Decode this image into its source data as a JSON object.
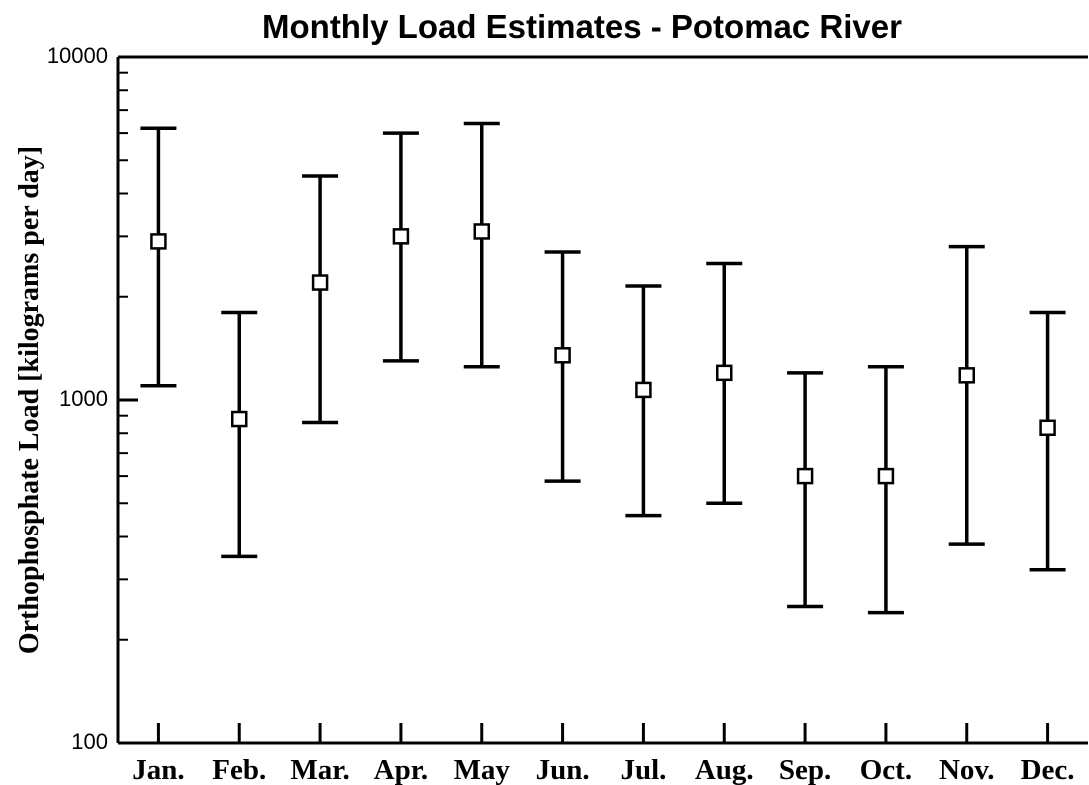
{
  "chart_data": {
    "type": "errorbar",
    "title": "Monthly Load Estimates - Potomac River",
    "y_label": "Orthophosphate  Load [kilograms per day]",
    "categories": [
      "Jan.",
      "Feb.",
      "Mar.",
      "Apr.",
      "May",
      "Jun.",
      "Jul.",
      "Aug.",
      "Sep.",
      "Oct.",
      "Nov.",
      "Dec."
    ],
    "series": [
      {
        "color": "#000000",
        "values": [
          2900,
          880,
          2200,
          3000,
          3100,
          1350,
          1070,
          1200,
          600,
          600,
          1180,
          830
        ],
        "lower": [
          1100,
          350,
          860,
          1300,
          1250,
          580,
          460,
          500,
          250,
          240,
          380,
          320
        ],
        "upper": [
          6200,
          1800,
          4500,
          6000,
          6400,
          2700,
          2150,
          2500,
          1200,
          1250,
          2800,
          1800
        ]
      }
    ],
    "ylim": [
      100,
      10000
    ],
    "log_y": true,
    "yticks": [
      100,
      1000,
      10000
    ],
    "minor_yticks": [
      200,
      300,
      400,
      500,
      600,
      700,
      800,
      900,
      2000,
      3000,
      4000,
      5000,
      6000,
      7000,
      8000,
      9000
    ]
  }
}
